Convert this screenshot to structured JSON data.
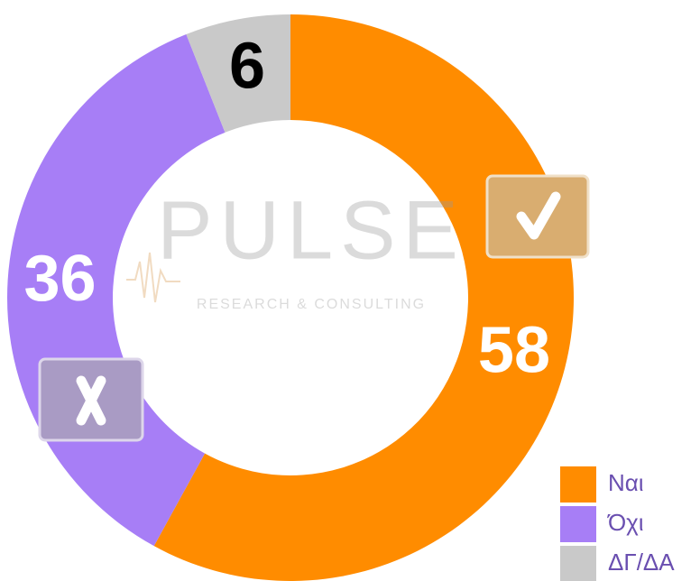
{
  "chart_data": {
    "type": "pie",
    "categories": [
      "Ναι",
      "Όχι",
      "ΔΓ/ΔΑ"
    ],
    "values": [
      58,
      36,
      6
    ],
    "colors": [
      "#ff8c00",
      "#a77ef6",
      "#c9c9c9"
    ],
    "label_colors": [
      "#ffffff",
      "#ffffff",
      "#000000"
    ],
    "donut": true,
    "legend": "bottom-right"
  },
  "watermark": {
    "title": "PULSE",
    "subtitle": "RESEARCH & CONSULTING"
  }
}
